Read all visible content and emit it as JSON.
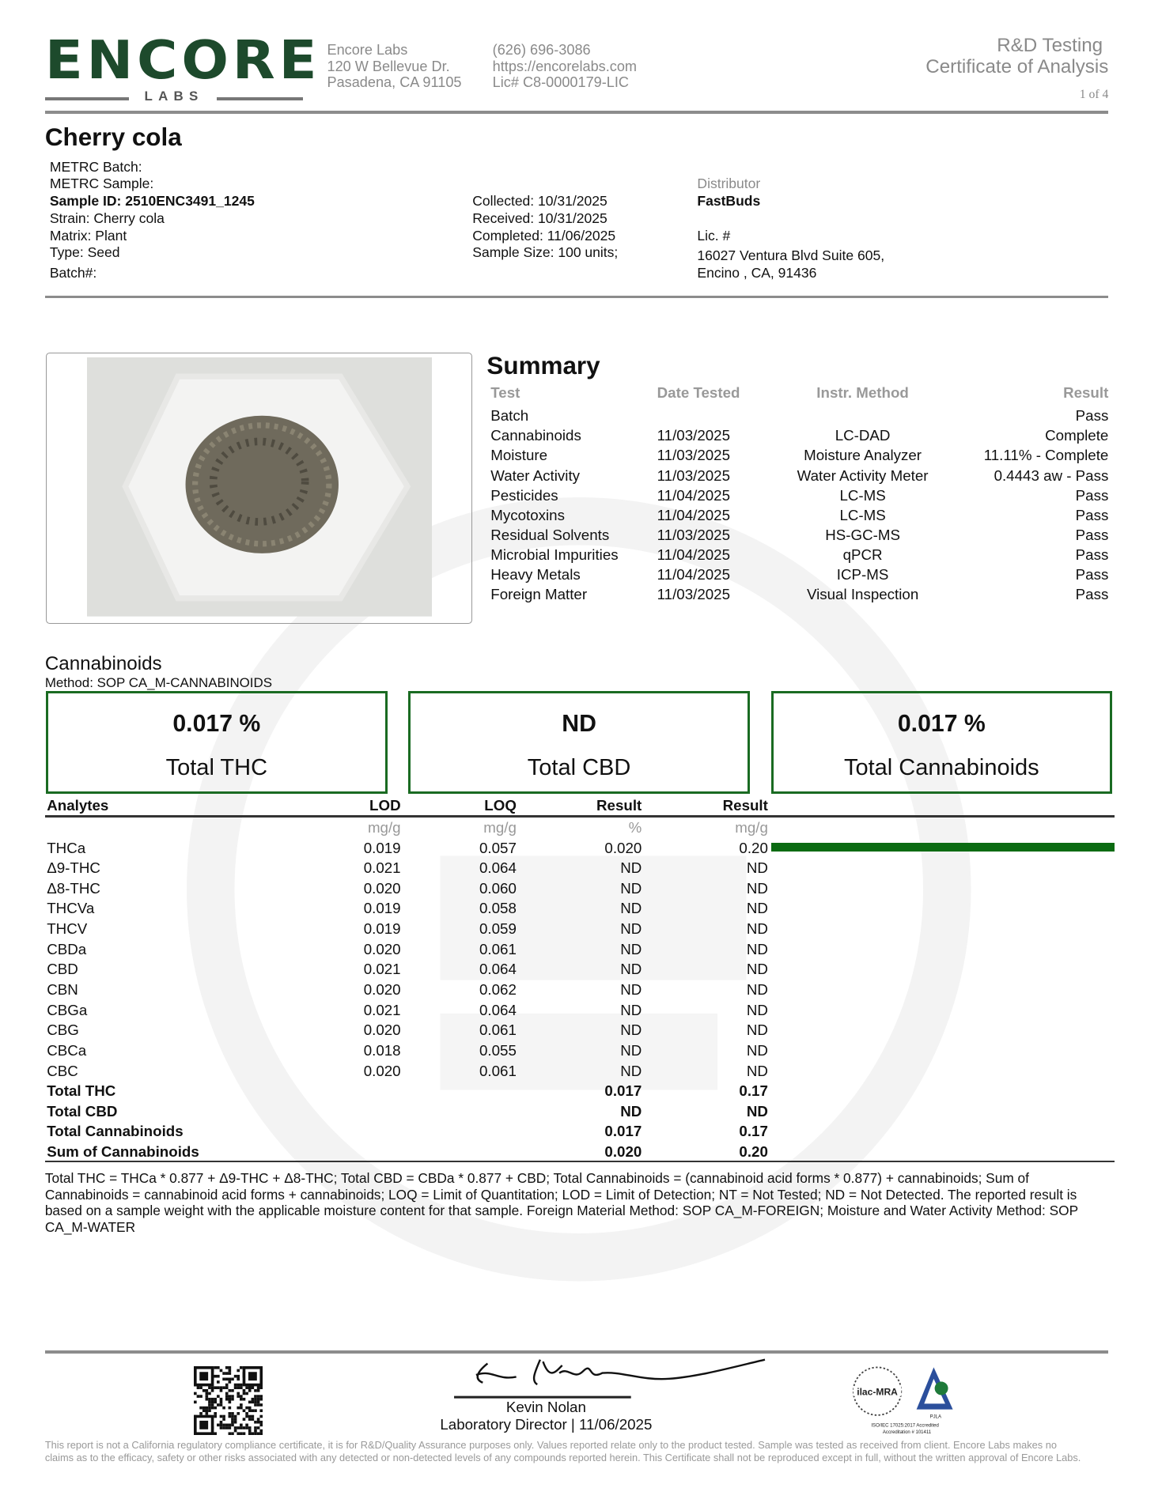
{
  "header": {
    "logo_main": "ENCORE",
    "logo_sub": "LABS",
    "address": [
      "Encore Labs",
      "120 W Bellevue Dr.",
      "Pasadena, CA 91105"
    ],
    "contact": [
      "(626) 696-3086",
      "https://encorelabs.com",
      "Lic# C8-0000179-LIC"
    ],
    "title_line1": "R&D Testing",
    "title_line2": "Certificate of Analysis",
    "page": "1 of 4"
  },
  "sample": {
    "name": "Cherry cola",
    "left": [
      "METRC Batch:",
      "METRC Sample:",
      "Sample ID: 2510ENC3491_1245",
      "Strain: Cherry cola",
      "Matrix: Plant",
      "Type: Seed",
      "Batch#:"
    ],
    "middle": [
      "Collected: 10/31/2025",
      "Received: 10/31/2025",
      "Completed: 11/06/2025",
      "Sample Size: 100 units;"
    ],
    "distributor_label": "Distributor",
    "distributor_name": "FastBuds",
    "lic": "Lic. #",
    "address1": "16027 Ventura Blvd Suite 605,",
    "address2": "Encino , CA, 91436"
  },
  "summary": {
    "title": "Summary",
    "headers": [
      "Test",
      "Date Tested",
      "Instr. Method",
      "Result"
    ],
    "rows": [
      [
        "Batch",
        "",
        "",
        "Pass"
      ],
      [
        "Cannabinoids",
        "11/03/2025",
        "LC-DAD",
        "Complete"
      ],
      [
        "Moisture",
        "11/03/2025",
        "Moisture Analyzer",
        "11.11% - Complete"
      ],
      [
        "Water Activity",
        "11/03/2025",
        "Water Activity Meter",
        "0.4443 aw - Pass"
      ],
      [
        "Pesticides",
        "11/04/2025",
        "LC-MS",
        "Pass"
      ],
      [
        "Mycotoxins",
        "11/04/2025",
        "LC-MS",
        "Pass"
      ],
      [
        "Residual Solvents",
        "11/03/2025",
        "HS-GC-MS",
        "Pass"
      ],
      [
        "Microbial Impurities",
        "11/04/2025",
        "qPCR",
        "Pass"
      ],
      [
        "Heavy Metals",
        "11/04/2025",
        "ICP-MS",
        "Pass"
      ],
      [
        "Foreign Matter",
        "11/03/2025",
        "Visual Inspection",
        "Pass"
      ]
    ]
  },
  "cannabinoids": {
    "title": "Cannabinoids",
    "method": "Method: SOP CA_M-CANNABINOIDS",
    "boxes": [
      {
        "value": "0.017 %",
        "label": "Total THC"
      },
      {
        "value": "ND",
        "label": "Total CBD"
      },
      {
        "value": "0.017 %",
        "label": "Total Cannabinoids"
      }
    ],
    "headers": [
      "Analytes",
      "LOD",
      "LOQ",
      "Result",
      "Result"
    ],
    "units": [
      "",
      "mg/g",
      "mg/g",
      "%",
      "mg/g"
    ],
    "rows": [
      [
        "THCa",
        "0.019",
        "0.057",
        "0.020",
        "0.20"
      ],
      [
        "Δ9-THC",
        "0.021",
        "0.064",
        "ND",
        "ND"
      ],
      [
        "Δ8-THC",
        "0.020",
        "0.060",
        "ND",
        "ND"
      ],
      [
        "THCVa",
        "0.019",
        "0.058",
        "ND",
        "ND"
      ],
      [
        "THCV",
        "0.019",
        "0.059",
        "ND",
        "ND"
      ],
      [
        "CBDa",
        "0.020",
        "0.061",
        "ND",
        "ND"
      ],
      [
        "CBD",
        "0.021",
        "0.064",
        "ND",
        "ND"
      ],
      [
        "CBN",
        "0.020",
        "0.062",
        "ND",
        "ND"
      ],
      [
        "CBGa",
        "0.021",
        "0.064",
        "ND",
        "ND"
      ],
      [
        "CBG",
        "0.020",
        "0.061",
        "ND",
        "ND"
      ],
      [
        "CBCa",
        "0.018",
        "0.055",
        "ND",
        "ND"
      ],
      [
        "CBC",
        "0.020",
        "0.061",
        "ND",
        "ND"
      ]
    ],
    "totals": [
      [
        "Total THC",
        "0.017",
        "0.17"
      ],
      [
        "Total CBD",
        "ND",
        "ND"
      ],
      [
        "Total Cannabinoids",
        "0.017",
        "0.17"
      ],
      [
        "Sum of Cannabinoids",
        "0.020",
        "0.20"
      ]
    ],
    "bar_fraction_thca": 1.0,
    "bar_color": "#0b6b12",
    "footnote": "Total THC = THCa * 0.877 + Δ9-THC + Δ8-THC; Total CBD = CBDa * 0.877 + CBD; Total Cannabinoids = (cannabinoid acid forms * 0.877) + cannabinoids; Sum of Cannabinoids = cannabinoid acid forms + cannabinoids; LOQ = Limit of Quantitation; LOD = Limit of Detection; NT = Not Tested; ND = Not Detected. The reported result is based on a sample weight with the applicable moisture content for that sample. Foreign Material Method: SOP CA_M-FOREIGN; Moisture and Water Activity Method: SOP CA_M-WATER"
  },
  "footer": {
    "signer": "Kevin Nolan",
    "signer_title": "Laboratory Director | 11/06/2025",
    "accreditation_logo_text": [
      "ilac-MRA",
      "PJLA",
      "Testing",
      "ISO/IEC 17025:2017 Accredited",
      "Accreditation # 101411"
    ],
    "disclaimer": "This report is not a California regulatory compliance certificate, it is for R&D/Quality Assurance purposes only. Values reported relate only to the product tested. Sample was tested as received from client. Encore Labs makes no claims as to the efficacy, safety or other risks associated with any detected or non-detected levels of any compounds reported herein. This Certificate shall not be reproduced except in full, without the written approval of Encore Labs."
  },
  "colors": {
    "brand_green": "#1d4a2c",
    "box_border": "#1a6b22"
  }
}
